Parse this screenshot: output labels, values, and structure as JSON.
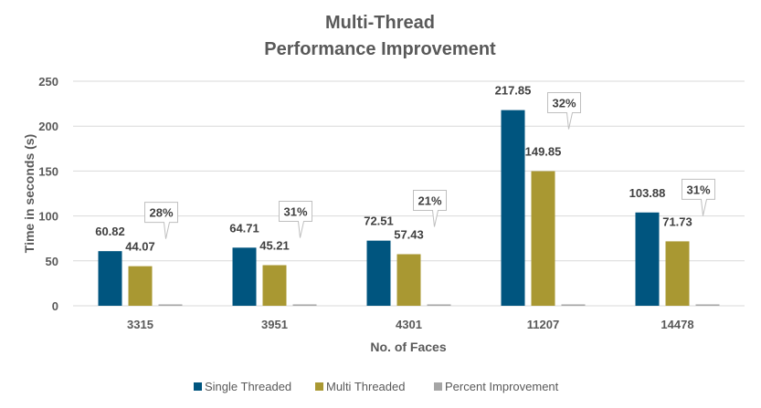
{
  "chart_data": {
    "type": "bar",
    "title": [
      "Multi-Thread",
      "Performance Improvement"
    ],
    "xlabel": "No. of Faces",
    "ylabel": "Time in seconds (s)",
    "ylim": [
      0,
      250
    ],
    "yticks": [
      "0",
      "50",
      "100",
      "150",
      "200",
      "250"
    ],
    "grid": true,
    "legend_position": "bottom",
    "categories": [
      "3315",
      "3951",
      "4301",
      "11207",
      "14478"
    ],
    "series": [
      {
        "name": "Single Threaded",
        "color": "#00557F",
        "values": [
          60.82,
          64.71,
          72.51,
          217.85,
          103.88
        ],
        "labels": [
          "60.82",
          "64.71",
          "72.51",
          "217.85",
          "103.88"
        ]
      },
      {
        "name": "Multi Threaded",
        "color": "#A99832",
        "values": [
          44.07,
          45.21,
          57.43,
          149.85,
          71.73
        ],
        "labels": [
          "44.07",
          "45.21",
          "57.43",
          "149.85",
          "71.73"
        ]
      },
      {
        "name": "Percent Improvement",
        "color": "#A5A5A5",
        "values": [
          0.28,
          0.31,
          0.21,
          0.32,
          0.31
        ],
        "labels": [
          "28%",
          "31%",
          "21%",
          "32%",
          "31%"
        ]
      }
    ]
  }
}
